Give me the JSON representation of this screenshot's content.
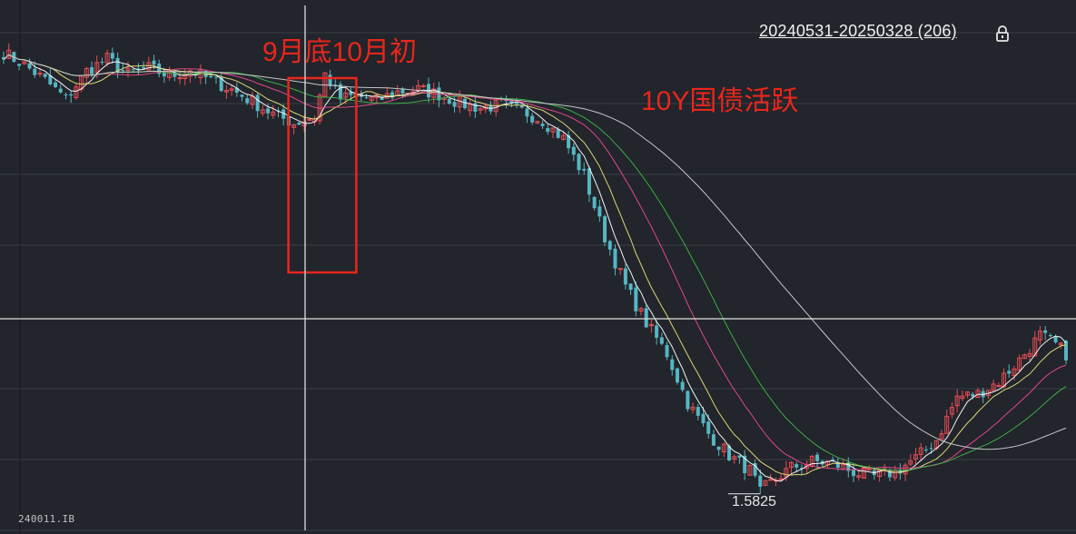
{
  "header": {
    "date_range": "20240531-20250328 (206)"
  },
  "annotations": {
    "highlight": "9月底10月初",
    "note": "10Y国债活跃"
  },
  "labels": {
    "min_value": "1.5825",
    "instrument_code": "240011.IB"
  },
  "icons": {
    "range_lock": "lock-icon"
  },
  "colors": {
    "background": "#22252b",
    "grid": "#3a3e46",
    "up": "#e84c55",
    "down": "#56b6c2",
    "annotation": "#e8261c",
    "crosshair": "#e0e0e0",
    "ma5": "#ffffff",
    "ma10": "#e5e07a",
    "ma20": "#ea4a8c",
    "ma30": "#3fb24a",
    "ma60": "#cfcfcf"
  },
  "chart_data": {
    "type": "candlestick",
    "candle_count": 206,
    "date_range": [
      "20240531",
      "20250328"
    ],
    "min_low": 1.5825,
    "series_shape": "gradual decline Jun–Sep, spike late Sep / early Oct, plateau Oct–Nov, sharp drop Dec–Jan to 1.5825, rebound Feb–Mar",
    "close_path": [
      [
        0,
        2.3
      ],
      [
        4,
        2.28
      ],
      [
        8,
        2.255
      ],
      [
        12,
        2.225
      ],
      [
        16,
        2.27
      ],
      [
        20,
        2.29
      ],
      [
        24,
        2.265
      ],
      [
        28,
        2.275
      ],
      [
        32,
        2.262
      ],
      [
        36,
        2.272
      ],
      [
        40,
        2.255
      ],
      [
        44,
        2.24
      ],
      [
        48,
        2.22
      ],
      [
        52,
        2.2
      ],
      [
        56,
        2.185
      ],
      [
        60,
        2.196
      ],
      [
        62,
        2.265
      ],
      [
        65,
        2.225
      ],
      [
        68,
        2.23
      ],
      [
        72,
        2.222
      ],
      [
        76,
        2.236
      ],
      [
        80,
        2.24
      ],
      [
        84,
        2.232
      ],
      [
        88,
        2.218
      ],
      [
        92,
        2.21
      ],
      [
        96,
        2.215
      ],
      [
        100,
        2.205
      ],
      [
        104,
        2.19
      ],
      [
        108,
        2.16
      ],
      [
        112,
        2.1
      ],
      [
        116,
        2.0
      ],
      [
        120,
        1.92
      ],
      [
        124,
        1.86
      ],
      [
        128,
        1.81
      ],
      [
        132,
        1.73
      ],
      [
        136,
        1.68
      ],
      [
        140,
        1.645
      ],
      [
        144,
        1.62
      ],
      [
        146,
        1.588
      ],
      [
        148,
        1.6
      ],
      [
        152,
        1.625
      ],
      [
        156,
        1.635
      ],
      [
        160,
        1.632
      ],
      [
        164,
        1.618
      ],
      [
        168,
        1.61
      ],
      [
        172,
        1.618
      ],
      [
        176,
        1.64
      ],
      [
        180,
        1.67
      ],
      [
        184,
        1.74
      ],
      [
        188,
        1.745
      ],
      [
        192,
        1.765
      ],
      [
        196,
        1.8
      ],
      [
        200,
        1.84
      ],
      [
        203,
        1.825
      ],
      [
        205,
        1.81
      ]
    ]
  }
}
